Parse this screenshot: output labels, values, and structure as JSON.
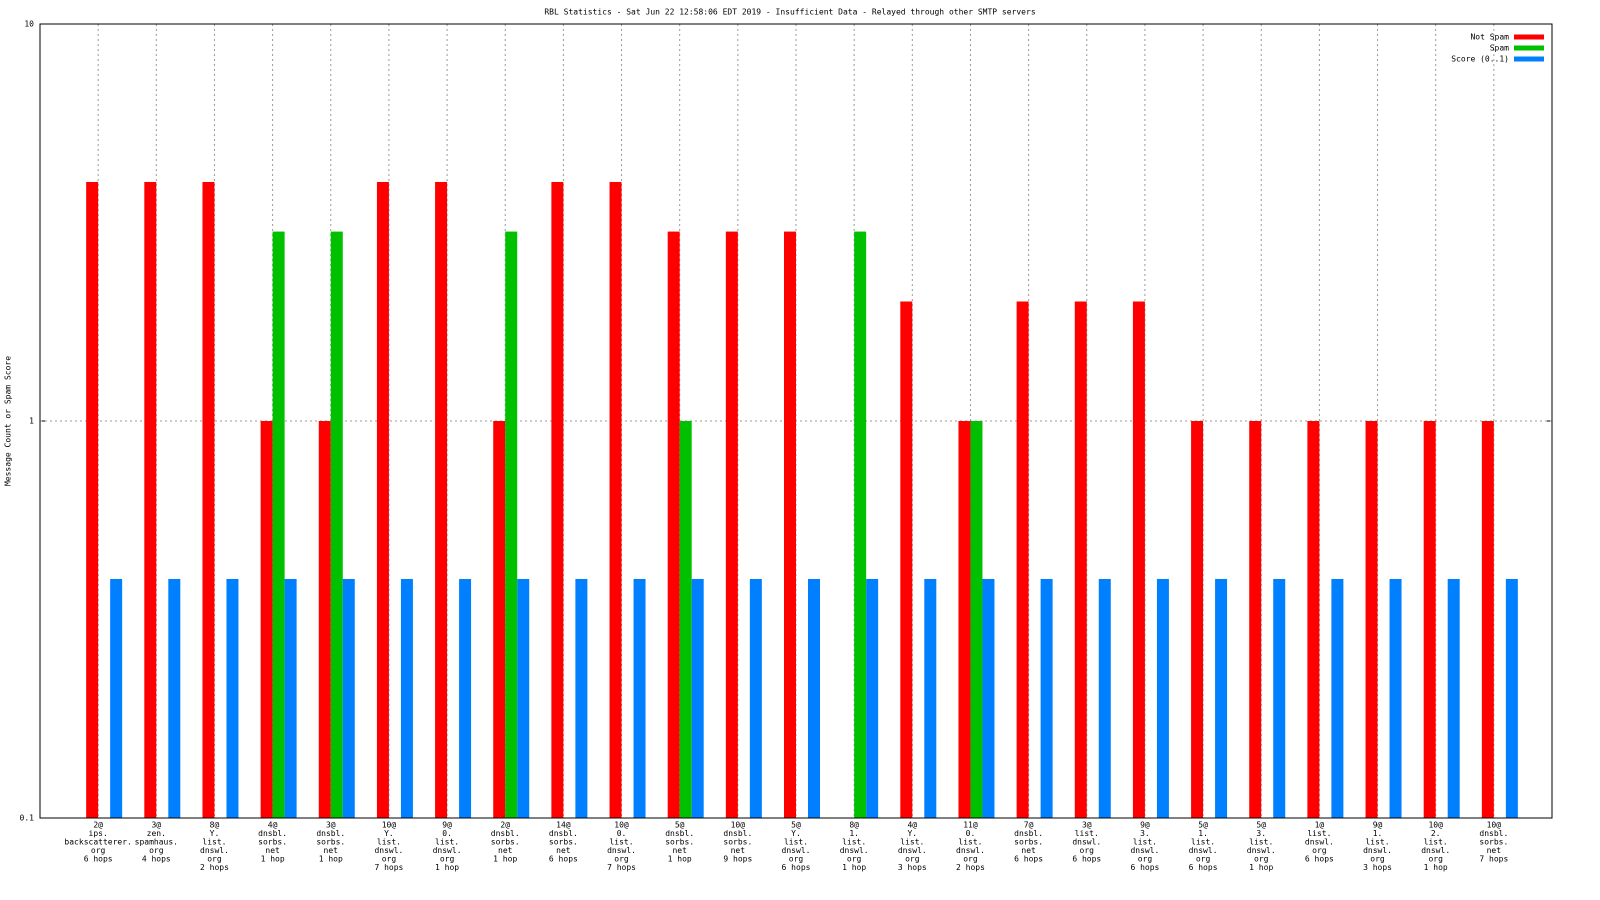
{
  "chart_data": {
    "type": "bar",
    "title": "RBL Statistics - Sat Jun 22 12:58:06 EDT 2019 - Insufficient Data - Relayed through other SMTP servers",
    "y_label": "Message Count or Spam Score",
    "ylog": true,
    "ylim": [
      0.1,
      10
    ],
    "yticks": [
      0.1,
      1,
      10
    ],
    "grid": true,
    "legend": "top-right",
    "categories": [
      [
        "2@",
        "ips.",
        "backscatterer.",
        "org",
        "6 hops"
      ],
      [
        "3@",
        "zen.",
        "spamhaus.",
        "org",
        "4 hops"
      ],
      [
        "8@",
        "Y.",
        "list.",
        "dnswl.",
        "org",
        "2 hops"
      ],
      [
        "4@",
        "dnsbl.",
        "sorbs.",
        "net",
        "1 hop"
      ],
      [
        "3@",
        "dnsbl.",
        "sorbs.",
        "net",
        "1 hop"
      ],
      [
        "10@",
        "Y.",
        "list.",
        "dnswl.",
        "org",
        "7 hops"
      ],
      [
        "9@",
        "0.",
        "list.",
        "dnswl.",
        "org",
        "1 hop"
      ],
      [
        "2@",
        "dnsbl.",
        "sorbs.",
        "net",
        "1 hop"
      ],
      [
        "14@",
        "dnsbl.",
        "sorbs.",
        "net",
        "6 hops"
      ],
      [
        "10@",
        "0.",
        "list.",
        "dnswl.",
        "org",
        "7 hops"
      ],
      [
        "5@",
        "dnsbl.",
        "sorbs.",
        "net",
        "1 hop"
      ],
      [
        "10@",
        "dnsbl.",
        "sorbs.",
        "net",
        "9 hops"
      ],
      [
        "5@",
        "Y.",
        "list.",
        "dnswl.",
        "org",
        "6 hops"
      ],
      [
        "8@",
        "1.",
        "list.",
        "dnswl.",
        "org",
        "1 hop"
      ],
      [
        "4@",
        "Y.",
        "list.",
        "dnswl.",
        "org",
        "3 hops"
      ],
      [
        "11@",
        "0.",
        "list.",
        "dnswl.",
        "org",
        "2 hops"
      ],
      [
        "7@",
        "dnsbl.",
        "sorbs.",
        "net",
        "6 hops"
      ],
      [
        "3@",
        "list.",
        "dnswl.",
        "org",
        "6 hops"
      ],
      [
        "9@",
        "3.",
        "list.",
        "dnswl.",
        "org",
        "6 hops"
      ],
      [
        "5@",
        "1.",
        "list.",
        "dnswl.",
        "org",
        "6 hops"
      ],
      [
        "5@",
        "3.",
        "list.",
        "dnswl.",
        "org",
        "1 hop"
      ],
      [
        "1@",
        "list.",
        "dnswl.",
        "org",
        "6 hops"
      ],
      [
        "9@",
        "1.",
        "list.",
        "dnswl.",
        "org",
        "3 hops"
      ],
      [
        "10@",
        "2.",
        "list.",
        "dnswl.",
        "org",
        "1 hop"
      ],
      [
        "10@",
        "dnsbl.",
        "sorbs.",
        "net",
        "7 hops"
      ]
    ],
    "series": [
      {
        "name": "Not Spam",
        "color": "#ff0000",
        "values": [
          4,
          4,
          4,
          1,
          1,
          4,
          4,
          1,
          4,
          4,
          3,
          3,
          3,
          null,
          2,
          1,
          2,
          2,
          2,
          1,
          1,
          1,
          1,
          1,
          1
        ]
      },
      {
        "name": "Spam",
        "color": "#00c000",
        "values": [
          null,
          null,
          null,
          3,
          3,
          null,
          null,
          3,
          null,
          null,
          1,
          null,
          null,
          3,
          null,
          1,
          null,
          null,
          null,
          null,
          null,
          null,
          null,
          null,
          null
        ]
      },
      {
        "name": "Score (0..1)",
        "color": "#0080ff",
        "values": [
          0.4,
          0.4,
          0.4,
          0.4,
          0.4,
          0.4,
          0.4,
          0.4,
          0.4,
          0.4,
          0.4,
          0.4,
          0.4,
          0.4,
          0.4,
          0.4,
          0.4,
          0.4,
          0.4,
          0.4,
          0.4,
          0.4,
          0.4,
          0.4,
          0.4
        ]
      }
    ]
  }
}
